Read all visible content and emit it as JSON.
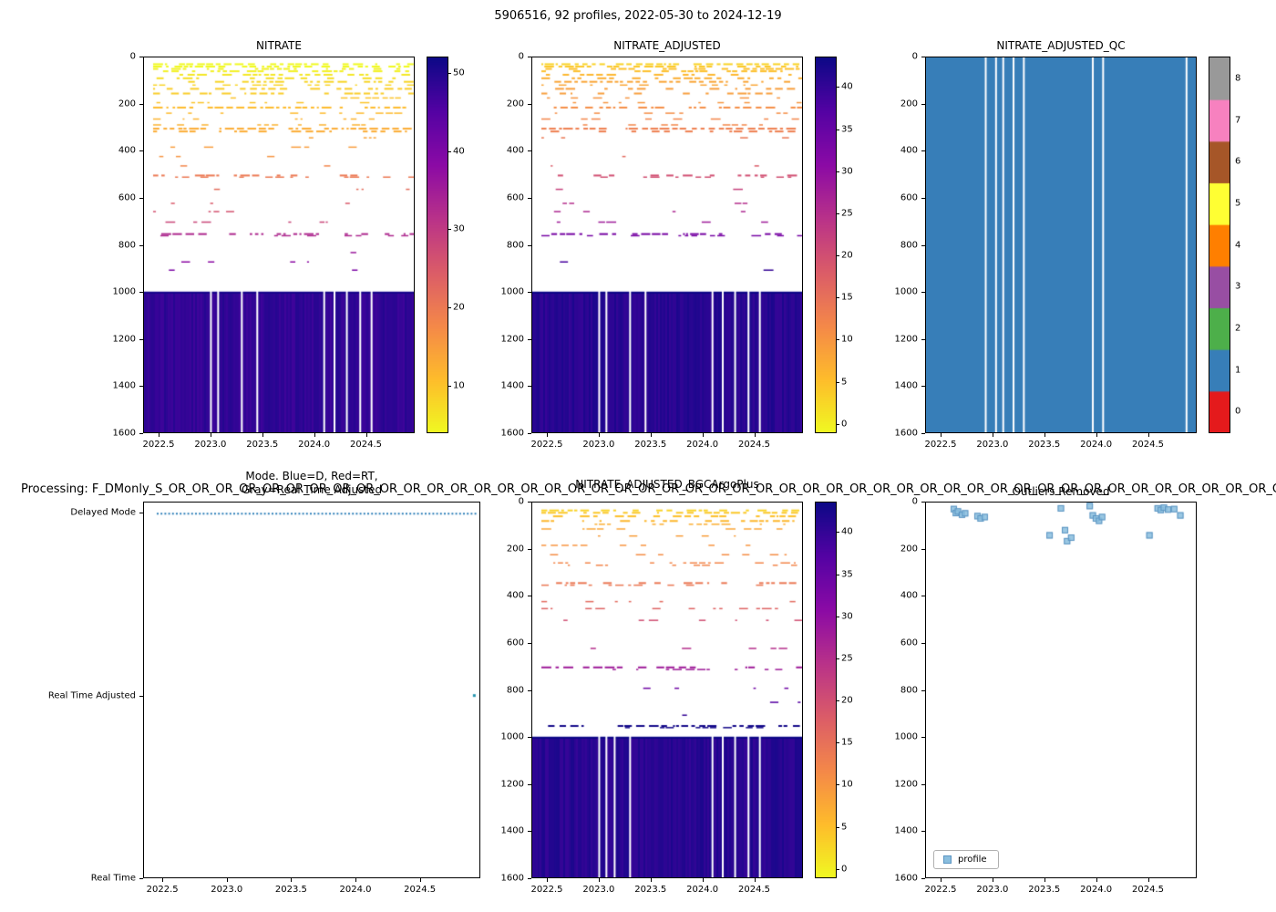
{
  "figure": {
    "title": "5906516, 92 profiles, 2022-05-30 to 2024-12-19",
    "processing_text": "Processing: F_DMonly_S_OR_OR_OR_OR_OR_OR_OR_OR_OR_OR_OR_OR_OR_OR_OR_OR_OR_OR_OR_OR_OR_OR_OR_OR_OR_OR_OR_OR_OR_OR_OR_OR_OR_OR_OR_OR_OR_OR_OR_OR_OR_OR_OR_OR_OR_OR_OR_OR_OR_OR",
    "background": "#ffffff"
  },
  "chart_data": [
    {
      "id": "nitrate",
      "type": "heatmap",
      "title": "NITRATE",
      "colormap": "plasma_r",
      "xlim": [
        2022.35,
        2024.97
      ],
      "ylim": [
        0,
        1600
      ],
      "x_ticks": [
        "2022.5",
        "2023.0",
        "2023.5",
        "2024.0",
        "2024.5"
      ],
      "x_tick_values": [
        2022.5,
        2023.0,
        2023.5,
        2024.0,
        2024.5
      ],
      "y_ticks": [
        "0",
        "200",
        "400",
        "600",
        "800",
        "1000",
        "1200",
        "1400",
        "1600"
      ],
      "vmin": 4,
      "vmax": 52,
      "colorbar_ticks": [
        10,
        20,
        30,
        40,
        50
      ],
      "deep_block": {
        "top": 1000,
        "bottom": 1600,
        "value": 48.5
      },
      "gap_xs": [
        2023.0,
        2023.07,
        2023.3,
        2023.45,
        2024.1,
        2024.2,
        2024.32,
        2024.45,
        2024.56
      ],
      "lines": [
        [
          25,
          3,
          0.75
        ],
        [
          35,
          4,
          0.8
        ],
        [
          45,
          5,
          0.6
        ],
        [
          55,
          5,
          0.5
        ],
        [
          70,
          6,
          0.55
        ],
        [
          85,
          7,
          0.5
        ],
        [
          100,
          8,
          0.7
        ],
        [
          115,
          8,
          0.4
        ],
        [
          130,
          9,
          0.5
        ],
        [
          150,
          9,
          0.6
        ],
        [
          170,
          10,
          0.35
        ],
        [
          190,
          10,
          0.3
        ],
        [
          210,
          11,
          0.7
        ],
        [
          235,
          11,
          0.25
        ],
        [
          260,
          12,
          0.3
        ],
        [
          285,
          12,
          0.22
        ],
        [
          300,
          13,
          0.85
        ],
        [
          312,
          13,
          0.5
        ],
        [
          340,
          14,
          0.2
        ],
        [
          380,
          15,
          0.15
        ],
        [
          420,
          16,
          0.1
        ],
        [
          460,
          18,
          0.08
        ],
        [
          500,
          20,
          0.5
        ],
        [
          508,
          20,
          0.3
        ],
        [
          560,
          22,
          0.08
        ],
        [
          620,
          25,
          0.1
        ],
        [
          655,
          26,
          0.12
        ],
        [
          700,
          28,
          0.1
        ],
        [
          750,
          33,
          0.6
        ],
        [
          758,
          33,
          0.3
        ],
        [
          830,
          36,
          0.05
        ],
        [
          870,
          38,
          0.06
        ],
        [
          905,
          40,
          0.08
        ]
      ]
    },
    {
      "id": "nitrate_adjusted",
      "type": "heatmap",
      "title": "NITRATE_ADJUSTED",
      "colormap": "plasma_r",
      "xlim": [
        2022.35,
        2024.97
      ],
      "ylim": [
        0,
        1600
      ],
      "x_ticks": [
        "2022.5",
        "2023.0",
        "2023.5",
        "2024.0",
        "2024.5"
      ],
      "x_tick_values": [
        2022.5,
        2023.0,
        2023.5,
        2024.0,
        2024.5
      ],
      "y_ticks": [
        "0",
        "200",
        "400",
        "600",
        "800",
        "1000",
        "1200",
        "1400",
        "1600"
      ],
      "vmin": -1,
      "vmax": 43.5,
      "colorbar_ticks": [
        0,
        5,
        10,
        15,
        20,
        25,
        30,
        35,
        40
      ],
      "deep_block": {
        "top": 1000,
        "bottom": 1600,
        "value": 41
      },
      "gap_xs": [
        2023.0,
        2023.07,
        2023.3,
        2023.45,
        2024.1,
        2024.2,
        2024.32,
        2024.45,
        2024.56
      ],
      "lines": [
        [
          25,
          3,
          0.75
        ],
        [
          35,
          4,
          0.8
        ],
        [
          45,
          5,
          0.6
        ],
        [
          55,
          5,
          0.5
        ],
        [
          70,
          6,
          0.55
        ],
        [
          85,
          7,
          0.5
        ],
        [
          100,
          8,
          0.7
        ],
        [
          115,
          8,
          0.4
        ],
        [
          130,
          9,
          0.5
        ],
        [
          150,
          9,
          0.6
        ],
        [
          170,
          10,
          0.35
        ],
        [
          190,
          10,
          0.3
        ],
        [
          210,
          11,
          0.7
        ],
        [
          235,
          11,
          0.25
        ],
        [
          260,
          12,
          0.3
        ],
        [
          285,
          12,
          0.22
        ],
        [
          300,
          13,
          0.85
        ],
        [
          312,
          13,
          0.5
        ],
        [
          340,
          14,
          0.2
        ],
        [
          380,
          15,
          0.15
        ],
        [
          420,
          16,
          0.1
        ],
        [
          460,
          18,
          0.08
        ],
        [
          500,
          20,
          0.5
        ],
        [
          508,
          20,
          0.3
        ],
        [
          560,
          22,
          0.08
        ],
        [
          620,
          25,
          0.1
        ],
        [
          655,
          26,
          0.12
        ],
        [
          700,
          28,
          0.1
        ],
        [
          750,
          33,
          0.6
        ],
        [
          758,
          33,
          0.3
        ],
        [
          830,
          36,
          0.05
        ],
        [
          870,
          38,
          0.06
        ],
        [
          905,
          40,
          0.08
        ]
      ]
    },
    {
      "id": "nitrate_adjusted_qc",
      "type": "heatmap_discrete",
      "title": "NITRATE_ADJUSTED_QC",
      "xlim": [
        2022.35,
        2024.97
      ],
      "ylim": [
        0,
        1600
      ],
      "x_ticks": [
        "2022.5",
        "2023.0",
        "2023.5",
        "2024.0",
        "2024.5"
      ],
      "x_tick_values": [
        2022.5,
        2023.0,
        2023.5,
        2024.0,
        2024.5
      ],
      "y_ticks": [
        "0",
        "200",
        "400",
        "600",
        "800",
        "1000",
        "1200",
        "1400",
        "1600"
      ],
      "fill_value": 1,
      "palette": [
        "#e41a1c",
        "#377eb8",
        "#4daf4a",
        "#984ea3",
        "#ff7f00",
        "#ffff33",
        "#a65628",
        "#f781bf",
        "#999999"
      ],
      "colorbar_ticks": [
        0,
        1,
        2,
        3,
        4,
        5,
        6,
        7,
        8
      ],
      "gap_xs": [
        2022.93,
        2023.03,
        2023.1,
        2023.2,
        2023.3,
        2023.97,
        2024.07,
        2024.88
      ]
    },
    {
      "id": "mode",
      "type": "categorical_timeline",
      "title": "Mode. Blue=D, Red=RT,",
      "title2": "Gray=Real Time Adjusted",
      "xlim": [
        2022.35,
        2024.97
      ],
      "x_ticks": [
        "2022.5",
        "2023.0",
        "2023.5",
        "2024.0",
        "2024.5"
      ],
      "x_tick_values": [
        2022.5,
        2023.0,
        2023.5,
        2024.0,
        2024.5
      ],
      "categories": [
        "Delayed Mode",
        "Real Time Adjusted",
        "Real Time"
      ],
      "category_positions": [
        0.03,
        0.515,
        1.0
      ],
      "series": [
        {
          "name": "Delayed Mode",
          "category": "Delayed Mode",
          "x_start": 2022.45,
          "x_end": 2024.95,
          "style": "dotted",
          "color": "#1f77b4"
        }
      ],
      "points": [
        {
          "x": 2024.93,
          "category": "Real Time Adjusted",
          "color": "#2394ae"
        }
      ]
    },
    {
      "id": "nitrate_adjusted_bgcargoplus",
      "type": "heatmap",
      "title": "NITRATE_ADJUSTED_BGCArgoPlus",
      "colormap": "plasma_r",
      "xlim": [
        2022.35,
        2024.97
      ],
      "ylim": [
        0,
        1600
      ],
      "x_ticks": [
        "2022.5",
        "2023.0",
        "2023.5",
        "2024.0",
        "2024.5"
      ],
      "x_tick_values": [
        2022.5,
        2023.0,
        2023.5,
        2024.0,
        2024.5
      ],
      "y_ticks": [
        "0",
        "200",
        "400",
        "600",
        "800",
        "1000",
        "1200",
        "1400",
        "1600"
      ],
      "vmin": -1,
      "vmax": 43.5,
      "colorbar_ticks": [
        0,
        5,
        10,
        15,
        20,
        25,
        30,
        35,
        40
      ],
      "deep_block": {
        "top": 1000,
        "bottom": 1600,
        "value": 41
      },
      "gap_xs": [
        2023.0,
        2023.07,
        2023.15,
        2023.3,
        2024.1,
        2024.2,
        2024.32,
        2024.45,
        2024.56
      ],
      "lines": [
        [
          30,
          3,
          0.8
        ],
        [
          40,
          4,
          0.7
        ],
        [
          55,
          5,
          0.5
        ],
        [
          75,
          6,
          0.6
        ],
        [
          90,
          7,
          0.45
        ],
        [
          110,
          8,
          0.3
        ],
        [
          140,
          9,
          0.25
        ],
        [
          180,
          10,
          0.2
        ],
        [
          220,
          11,
          0.3
        ],
        [
          255,
          12,
          0.45
        ],
        [
          265,
          12,
          0.3
        ],
        [
          340,
          14,
          0.7
        ],
        [
          350,
          14,
          0.4
        ],
        [
          420,
          16,
          0.15
        ],
        [
          450,
          17,
          0.35
        ],
        [
          500,
          20,
          0.25
        ],
        [
          560,
          22,
          0.1
        ],
        [
          620,
          25,
          0.08
        ],
        [
          700,
          28,
          0.55
        ],
        [
          710,
          28,
          0.3
        ],
        [
          790,
          34,
          0.06
        ],
        [
          850,
          37,
          0.05
        ],
        [
          905,
          40,
          0.12
        ],
        [
          950,
          43,
          0.6
        ],
        [
          958,
          43,
          0.35
        ]
      ]
    },
    {
      "id": "outliers_removed",
      "type": "scatter",
      "title": "Outliers Removed",
      "legend_label": "profile",
      "xlim": [
        2022.35,
        2024.97
      ],
      "ylim": [
        0,
        1600
      ],
      "x_ticks": [
        "2022.5",
        "2023.0",
        "2023.5",
        "2024.0",
        "2024.5"
      ],
      "x_tick_values": [
        2022.5,
        2023.0,
        2023.5,
        2024.0,
        2024.5
      ],
      "y_ticks": [
        "0",
        "200",
        "400",
        "600",
        "800",
        "1000",
        "1200",
        "1400",
        "1600"
      ],
      "marker": {
        "shape": "square",
        "fill": "#8abede",
        "edge": "#5b94c2",
        "size": 7
      },
      "points": [
        [
          2022.62,
          28
        ],
        [
          2022.64,
          45
        ],
        [
          2022.66,
          38
        ],
        [
          2022.7,
          52
        ],
        [
          2022.73,
          46
        ],
        [
          2022.85,
          58
        ],
        [
          2022.88,
          68
        ],
        [
          2022.92,
          62
        ],
        [
          2023.55,
          140
        ],
        [
          2023.66,
          25
        ],
        [
          2023.7,
          118
        ],
        [
          2023.72,
          165
        ],
        [
          2023.76,
          150
        ],
        [
          2023.94,
          15
        ],
        [
          2023.97,
          55
        ],
        [
          2024.0,
          68
        ],
        [
          2024.03,
          78
        ],
        [
          2024.06,
          62
        ],
        [
          2024.52,
          140
        ],
        [
          2024.6,
          25
        ],
        [
          2024.63,
          32
        ],
        [
          2024.66,
          22
        ],
        [
          2024.7,
          30
        ],
        [
          2024.76,
          28
        ],
        [
          2024.82,
          55
        ]
      ]
    }
  ]
}
